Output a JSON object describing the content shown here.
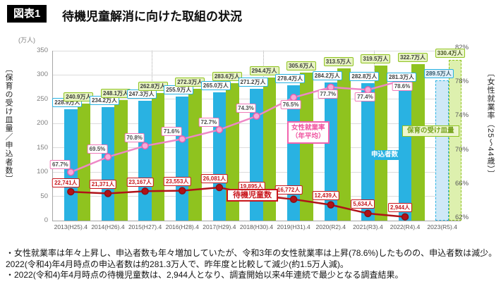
{
  "header": {
    "badge": "図表1",
    "title": "待機児童解消に向けた取組の状況"
  },
  "chart": {
    "left_axis_title": "〔保育の受け皿量／申込者数〕",
    "right_axis_title": "〔女性就業率（25～44歳）〕",
    "left_unit": "(万人)"
  },
  "chart_data": {
    "type": "bar+line",
    "categories": [
      "2013(H25).4",
      "2014(H26).4",
      "2015(H27).4",
      "2016(H28).4",
      "2017(H29).4",
      "2018(H30).4",
      "2019(H31).4",
      "2020(R2).4",
      "2021(R3).4",
      "2022(R4).4",
      "2023(R5).4"
    ],
    "left_axis": {
      "min": 0,
      "max": 350,
      "step": 50,
      "unit": "万人",
      "ticks": [
        "0",
        "50",
        "100",
        "150",
        "200",
        "250",
        "300",
        "350"
      ]
    },
    "right_axis": {
      "min": 62,
      "max": 82,
      "step": 4,
      "unit": "%",
      "ticks": [
        "62%",
        "66%",
        "70%",
        "74%",
        "78%",
        "82%"
      ]
    },
    "grid": true,
    "period_divider_indices": [
      2,
      5,
      8
    ],
    "forecast_index": 10,
    "series": [
      {
        "key": "capacity",
        "name": "保育の受け皿量",
        "type": "bar",
        "unit": "万人",
        "color": "#8fc31f",
        "values": [
          240.9,
          248.1,
          262.8,
          272.3,
          283.6,
          294.4,
          305.6,
          313.5,
          319.5,
          322.7,
          330.4
        ],
        "labels": [
          "240.9万人",
          "248.1万人",
          "262.8万人",
          "272.3万人",
          "283.6万人",
          "294.4万人",
          "305.6万人",
          "313.5万人",
          "319.5万人",
          "322.7万人",
          "330.4万人"
        ]
      },
      {
        "key": "applicants",
        "name": "申込者数",
        "type": "bar",
        "unit": "万人",
        "color": "#29b2e2",
        "values": [
          228.9,
          234.2,
          247.3,
          255.9,
          265.0,
          271.2,
          278.4,
          284.2,
          282.8,
          281.3,
          289.5
        ],
        "labels": [
          "228.9万人",
          "234.2万人",
          "247.3万人",
          "255.9万人",
          "265.0万人",
          "271.2万人",
          "278.4万人",
          "284.2万人",
          "282.8万人",
          "281.3万人",
          "289.5万人"
        ]
      },
      {
        "key": "employment-rate",
        "name": "女性就業率（年平均）",
        "type": "line",
        "unit": "%",
        "axis": "right",
        "color": "#ee87c5",
        "values": [
          67.7,
          69.5,
          70.8,
          71.6,
          72.7,
          74.3,
          76.5,
          77.7,
          77.4,
          78.6,
          null
        ],
        "labels": [
          "67.7%",
          "69.5%",
          "70.8%",
          "71.6%",
          "72.7%",
          "74.3%",
          "76.5%",
          "77.7%",
          "77.4%",
          "78.6%",
          null
        ]
      },
      {
        "key": "waiting-children",
        "name": "待機児童数",
        "type": "line",
        "unit": "人",
        "color": "#b01218",
        "values": [
          22741,
          21371,
          23167,
          23553,
          26081,
          19895,
          16772,
          12439,
          5634,
          2944,
          null
        ],
        "labels": [
          "22,741人",
          "21,371人",
          "23,167人",
          "23,553人",
          "26,081人",
          "19,895人",
          "16,772人",
          "12,439人",
          "5,634人",
          "2,944人",
          null
        ]
      }
    ],
    "callouts": [
      {
        "key": "employment-rate",
        "text": "女性就業率\n（年平均）",
        "style": "pink"
      },
      {
        "key": "applicants",
        "text": "申込者数",
        "style": "blue"
      },
      {
        "key": "capacity",
        "text": "保育の受け皿量",
        "style": "green"
      },
      {
        "key": "waiting-children",
        "text": "待機児童数",
        "style": "red"
      }
    ]
  },
  "notes": [
    "・女性就業率は年々上昇し、申込者数も年々増加していたが、令和3年の女性就業率は上昇(78.6%)したものの、申込者数は減少。2022(令和4)年4月時点の申込者数は約281.3万人で、昨年度と比較して減少(約1.5万人減)。",
    "・2022(令和4)年4月時点の待機児童数は、2,944人となり、調査開始以来4年連続で最少となる調査結果。"
  ]
}
